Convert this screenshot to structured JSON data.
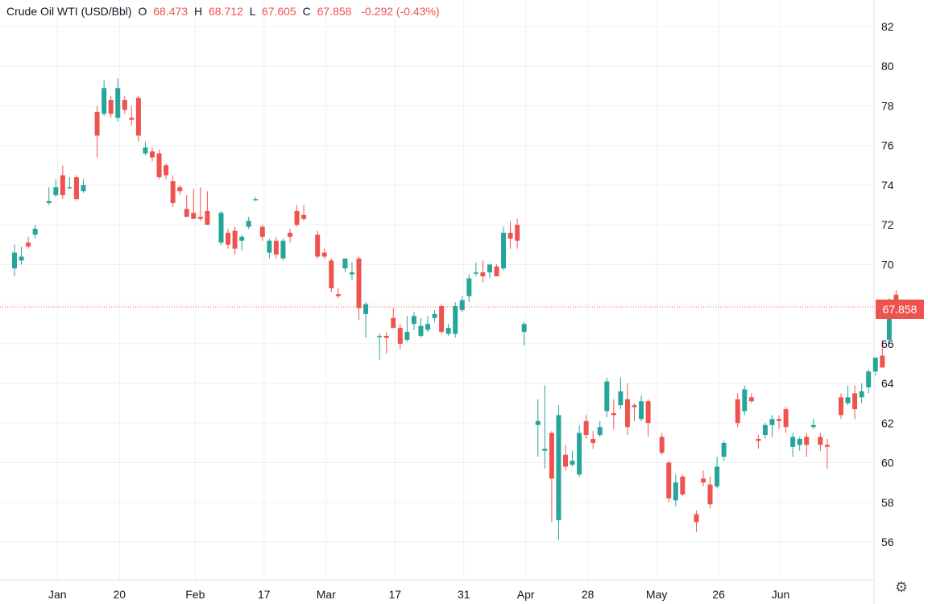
{
  "legend": {
    "symbol": "Crude Oil WTI (USD/Bbl)",
    "open_label": "O",
    "open": "68.473",
    "high_label": "H",
    "high": "68.712",
    "low_label": "L",
    "low": "67.605",
    "close_label": "C",
    "close": "67.858",
    "change": "-0.292 (-0.43%)"
  },
  "last_price_label": "67.858",
  "settings_icon": "gear-icon",
  "colors": {
    "up": "#26a69a",
    "down": "#ef5350",
    "grid": "#eef0f3",
    "axis_text": "#131722",
    "last_price_line": "#ef5350"
  },
  "chart_data": {
    "type": "candlestick",
    "yticks": [
      56,
      58,
      60,
      62,
      64,
      66,
      68,
      70,
      72,
      74,
      76,
      78,
      80,
      82
    ],
    "ylim": [
      54.5,
      83.1
    ],
    "grid": true,
    "last_price": 67.858,
    "xticks": [
      {
        "label": "Jan",
        "index": 6
      },
      {
        "label": "20",
        "index": 15
      },
      {
        "label": "Feb",
        "index": 26
      },
      {
        "label": "17",
        "index": 36
      },
      {
        "label": "Mar",
        "index": 45
      },
      {
        "label": "17",
        "index": 55
      },
      {
        "label": "31",
        "index": 65
      },
      {
        "label": "Apr",
        "index": 74
      },
      {
        "label": "28",
        "index": 83
      },
      {
        "label": "May",
        "index": 93
      },
      {
        "label": "26",
        "index": 102
      },
      {
        "label": "Jun",
        "index": 111
      }
    ],
    "candles": [
      {
        "o": 69.8,
        "h": 71.0,
        "l": 69.4,
        "c": 70.6
      },
      {
        "o": 70.2,
        "h": 70.9,
        "l": 70.0,
        "c": 70.4
      },
      {
        "o": 71.1,
        "h": 71.4,
        "l": 70.8,
        "c": 70.9
      },
      {
        "o": 71.5,
        "h": 72.0,
        "l": 71.3,
        "c": 71.8
      },
      null,
      {
        "o": 73.1,
        "h": 73.9,
        "l": 73.0,
        "c": 73.2
      },
      {
        "o": 73.5,
        "h": 74.3,
        "l": 73.4,
        "c": 73.9
      },
      {
        "o": 74.5,
        "h": 75.0,
        "l": 73.3,
        "c": 73.5
      },
      {
        "o": 73.9,
        "h": 74.4,
        "l": 73.8,
        "c": 73.9
      },
      {
        "o": 74.4,
        "h": 74.5,
        "l": 73.2,
        "c": 73.3
      },
      {
        "o": 73.7,
        "h": 74.3,
        "l": 73.6,
        "c": 74.0
      },
      null,
      {
        "o": 77.7,
        "h": 78.0,
        "l": 75.4,
        "c": 76.5
      },
      {
        "o": 77.6,
        "h": 79.3,
        "l": 77.5,
        "c": 78.9
      },
      {
        "o": 78.3,
        "h": 78.5,
        "l": 77.4,
        "c": 77.6
      },
      {
        "o": 77.4,
        "h": 79.4,
        "l": 77.2,
        "c": 78.9
      },
      {
        "o": 78.3,
        "h": 78.5,
        "l": 77.6,
        "c": 77.8
      },
      {
        "o": 77.4,
        "h": 78.0,
        "l": 77.0,
        "c": 77.3
      },
      {
        "o": 78.4,
        "h": 78.5,
        "l": 76.2,
        "c": 76.5
      },
      {
        "o": 75.6,
        "h": 76.2,
        "l": 75.5,
        "c": 75.9
      },
      {
        "o": 75.7,
        "h": 75.9,
        "l": 75.2,
        "c": 75.4
      },
      {
        "o": 75.6,
        "h": 75.8,
        "l": 74.3,
        "c": 74.4
      },
      {
        "o": 75.0,
        "h": 75.1,
        "l": 74.3,
        "c": 74.5
      },
      {
        "o": 74.2,
        "h": 74.5,
        "l": 72.9,
        "c": 73.1
      },
      {
        "o": 73.9,
        "h": 74.0,
        "l": 73.5,
        "c": 73.7
      },
      {
        "o": 72.8,
        "h": 73.5,
        "l": 72.5,
        "c": 72.4
      },
      {
        "o": 72.6,
        "h": 73.8,
        "l": 72.5,
        "c": 72.3
      },
      {
        "o": 72.4,
        "h": 73.9,
        "l": 72.2,
        "c": 72.3
      },
      {
        "o": 72.7,
        "h": 73.7,
        "l": 72.0,
        "c": 72.0
      },
      null,
      {
        "o": 71.1,
        "h": 72.7,
        "l": 71.0,
        "c": 72.6
      },
      {
        "o": 71.6,
        "h": 71.8,
        "l": 70.8,
        "c": 71.0
      },
      {
        "o": 71.7,
        "h": 71.9,
        "l": 70.5,
        "c": 70.8
      },
      {
        "o": 71.2,
        "h": 71.5,
        "l": 70.7,
        "c": 71.4
      },
      {
        "o": 71.9,
        "h": 72.4,
        "l": 71.8,
        "c": 72.2
      },
      {
        "o": 73.3,
        "h": 73.4,
        "l": 73.2,
        "c": 73.3
      },
      {
        "o": 71.9,
        "h": 72.0,
        "l": 71.2,
        "c": 71.4
      },
      {
        "o": 70.6,
        "h": 71.3,
        "l": 70.3,
        "c": 71.2
      },
      {
        "o": 71.2,
        "h": 71.4,
        "l": 70.3,
        "c": 70.5
      },
      {
        "o": 70.3,
        "h": 71.3,
        "l": 70.2,
        "c": 71.2
      },
      {
        "o": 71.6,
        "h": 71.8,
        "l": 71.1,
        "c": 71.4
      },
      {
        "o": 72.7,
        "h": 73.0,
        "l": 71.9,
        "c": 72.0
      },
      {
        "o": 72.5,
        "h": 73.0,
        "l": 72.2,
        "c": 72.3
      },
      null,
      {
        "o": 71.5,
        "h": 71.7,
        "l": 70.3,
        "c": 70.4
      },
      {
        "o": 70.6,
        "h": 70.8,
        "l": 70.3,
        "c": 70.4
      },
      {
        "o": 70.2,
        "h": 70.3,
        "l": 68.6,
        "c": 68.8
      },
      {
        "o": 68.5,
        "h": 68.8,
        "l": 68.3,
        "c": 68.4
      },
      {
        "o": 69.8,
        "h": 70.2,
        "l": 69.6,
        "c": 70.3
      },
      {
        "o": 69.5,
        "h": 70.1,
        "l": 69.2,
        "c": 69.6
      },
      {
        "o": 70.3,
        "h": 70.4,
        "l": 67.2,
        "c": 67.8
      },
      {
        "o": 67.5,
        "h": 68.1,
        "l": 66.3,
        "c": 68.0
      },
      null,
      {
        "o": 66.4,
        "h": 66.5,
        "l": 65.2,
        "c": 66.4
      },
      {
        "o": 66.4,
        "h": 66.6,
        "l": 65.5,
        "c": 66.3
      },
      {
        "o": 67.3,
        "h": 67.8,
        "l": 66.8,
        "c": 66.8
      },
      {
        "o": 66.8,
        "h": 67.0,
        "l": 65.7,
        "c": 66.0
      },
      {
        "o": 66.2,
        "h": 67.4,
        "l": 66.1,
        "c": 66.6
      },
      {
        "o": 67.0,
        "h": 67.6,
        "l": 66.7,
        "c": 67.4
      },
      {
        "o": 66.4,
        "h": 67.3,
        "l": 66.3,
        "c": 66.9
      },
      {
        "o": 66.7,
        "h": 67.4,
        "l": 66.6,
        "c": 67.0
      },
      {
        "o": 67.3,
        "h": 67.7,
        "l": 67.1,
        "c": 67.5
      },
      {
        "o": 67.9,
        "h": 68.0,
        "l": 66.5,
        "c": 66.6
      },
      {
        "o": 66.5,
        "h": 67.0,
        "l": 66.4,
        "c": 66.8
      },
      {
        "o": 66.5,
        "h": 68.1,
        "l": 66.3,
        "c": 67.9
      },
      {
        "o": 67.7,
        "h": 68.4,
        "l": 67.6,
        "c": 68.2
      },
      {
        "o": 68.4,
        "h": 69.5,
        "l": 68.1,
        "c": 69.3
      },
      {
        "o": 69.6,
        "h": 70.1,
        "l": 69.4,
        "c": 69.6
      },
      {
        "o": 69.6,
        "h": 70.2,
        "l": 69.1,
        "c": 69.4
      },
      {
        "o": 69.6,
        "h": 69.9,
        "l": 69.3,
        "c": 70.0
      },
      {
        "o": 69.9,
        "h": 70.0,
        "l": 69.4,
        "c": 69.4
      },
      {
        "o": 69.8,
        "h": 71.9,
        "l": 69.7,
        "c": 71.6
      },
      {
        "o": 71.6,
        "h": 72.2,
        "l": 70.8,
        "c": 71.3
      },
      {
        "o": 72.0,
        "h": 72.3,
        "l": 70.8,
        "c": 71.2
      }
    ],
    "candles_part2": [
      {
        "o": 66.6,
        "h": 67.1,
        "l": 65.9,
        "c": 67.0
      },
      null,
      {
        "o": 61.9,
        "h": 63.2,
        "l": 60.3,
        "c": 62.1
      },
      {
        "o": 60.6,
        "h": 63.9,
        "l": 59.7,
        "c": 60.7
      },
      {
        "o": 61.5,
        "h": 61.6,
        "l": 57.0,
        "c": 59.2
      },
      {
        "o": 57.1,
        "h": 62.9,
        "l": 56.1,
        "c": 62.4
      },
      {
        "o": 60.4,
        "h": 60.9,
        "l": 59.6,
        "c": 59.8
      },
      {
        "o": 59.9,
        "h": 60.6,
        "l": 59.8,
        "c": 60.1
      },
      {
        "o": 59.4,
        "h": 61.9,
        "l": 59.3,
        "c": 61.5
      },
      {
        "o": 62.1,
        "h": 62.4,
        "l": 61.2,
        "c": 61.4
      },
      {
        "o": 61.2,
        "h": 61.6,
        "l": 60.7,
        "c": 61.0
      },
      {
        "o": 61.4,
        "h": 62.1,
        "l": 61.3,
        "c": 61.8
      },
      {
        "o": 62.6,
        "h": 64.3,
        "l": 62.3,
        "c": 64.1
      },
      {
        "o": 62.5,
        "h": 63.2,
        "l": 61.7,
        "c": 62.4
      },
      {
        "o": 62.9,
        "h": 64.3,
        "l": 62.7,
        "c": 63.6
      },
      {
        "o": 63.2,
        "h": 64.0,
        "l": 61.4,
        "c": 61.8
      },
      {
        "o": 62.9,
        "h": 63.0,
        "l": 62.1,
        "c": 62.8
      },
      {
        "o": 62.2,
        "h": 63.4,
        "l": 62.1,
        "c": 63.1
      },
      {
        "o": 63.1,
        "h": 63.2,
        "l": 61.3,
        "c": 62.0
      },
      null,
      {
        "o": 61.3,
        "h": 61.5,
        "l": 60.4,
        "c": 60.5
      },
      {
        "o": 60.0,
        "h": 60.1,
        "l": 58.0,
        "c": 58.2
      },
      {
        "o": 58.1,
        "h": 59.4,
        "l": 57.8,
        "c": 59.0
      },
      {
        "o": 59.3,
        "h": 59.4,
        "l": 58.3,
        "c": 58.4
      },
      null,
      {
        "o": 57.4,
        "h": 57.6,
        "l": 56.5,
        "c": 57.0
      },
      {
        "o": 59.2,
        "h": 59.6,
        "l": 58.8,
        "c": 59.0
      },
      {
        "o": 58.9,
        "h": 59.3,
        "l": 57.7,
        "c": 57.9
      },
      {
        "o": 58.8,
        "h": 60.3,
        "l": 58.7,
        "c": 59.8
      },
      {
        "o": 60.3,
        "h": 61.1,
        "l": 60.1,
        "c": 61.0
      },
      null,
      {
        "o": 63.2,
        "h": 63.5,
        "l": 61.8,
        "c": 62.0
      },
      {
        "o": 62.6,
        "h": 63.9,
        "l": 62.4,
        "c": 63.7
      },
      {
        "o": 63.3,
        "h": 63.5,
        "l": 63.0,
        "c": 63.1
      },
      {
        "o": 61.2,
        "h": 61.4,
        "l": 60.7,
        "c": 61.1
      },
      {
        "o": 61.4,
        "h": 62.0,
        "l": 61.2,
        "c": 61.9
      },
      {
        "o": 61.9,
        "h": 62.4,
        "l": 61.3,
        "c": 62.2
      },
      {
        "o": 62.2,
        "h": 62.4,
        "l": 61.7,
        "c": 62.1
      },
      {
        "o": 62.7,
        "h": 62.8,
        "l": 61.5,
        "c": 61.8
      },
      {
        "o": 60.8,
        "h": 61.5,
        "l": 60.3,
        "c": 61.3
      },
      {
        "o": 60.9,
        "h": 61.3,
        "l": 60.6,
        "c": 61.2
      },
      {
        "o": 61.3,
        "h": 61.5,
        "l": 60.3,
        "c": 60.9
      },
      {
        "o": 61.8,
        "h": 62.2,
        "l": 61.7,
        "c": 61.9
      },
      {
        "o": 61.3,
        "h": 61.5,
        "l": 60.6,
        "c": 60.9
      },
      {
        "o": 60.9,
        "h": 61.2,
        "l": 59.7,
        "c": 60.8
      },
      null,
      {
        "o": 63.3,
        "h": 63.5,
        "l": 62.2,
        "c": 62.4
      },
      {
        "o": 63.0,
        "h": 63.9,
        "l": 62.9,
        "c": 63.3
      },
      {
        "o": 63.5,
        "h": 63.9,
        "l": 62.2,
        "c": 62.7
      },
      {
        "o": 63.3,
        "h": 64.0,
        "l": 63.0,
        "c": 63.6
      },
      {
        "o": 63.8,
        "h": 64.7,
        "l": 63.5,
        "c": 64.6
      },
      {
        "o": 64.6,
        "h": 65.3,
        "l": 64.4,
        "c": 65.3
      },
      {
        "o": 65.4,
        "h": 66.2,
        "l": 64.8,
        "c": 64.8
      },
      {
        "o": 66.2,
        "h": 68.3,
        "l": 66.0,
        "c": 68.2
      },
      {
        "o": 68.473,
        "h": 68.712,
        "l": 67.605,
        "c": 67.858
      }
    ]
  }
}
